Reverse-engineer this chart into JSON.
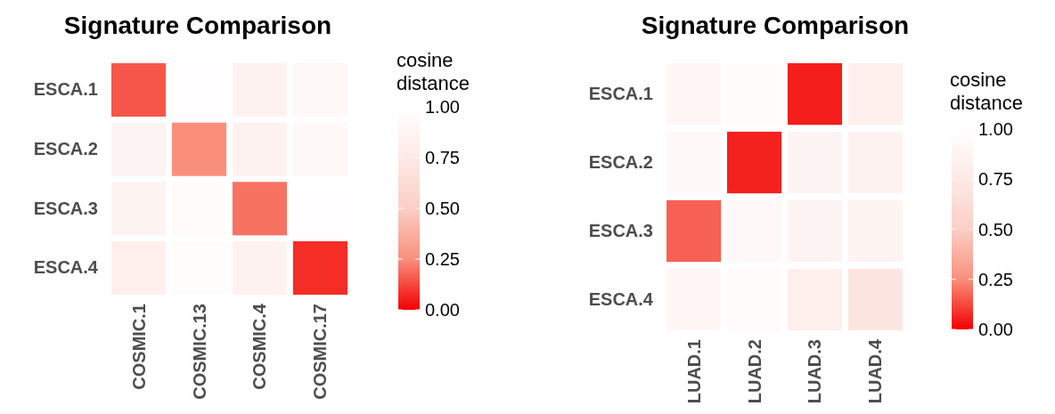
{
  "chart_data": [
    {
      "type": "heatmap",
      "title": "Signature Comparison",
      "clabel": "cosine distance",
      "categories": [
        "COSMIC.1",
        "COSMIC.13",
        "COSMIC.4",
        "COSMIC.17"
      ],
      "y_categories": [
        "ESCA.1",
        "ESCA.2",
        "ESCA.3",
        "ESCA.4"
      ],
      "cells": [
        [
          0.15,
          0.98,
          0.85,
          0.92
        ],
        [
          0.88,
          0.25,
          0.85,
          0.92
        ],
        [
          0.87,
          0.95,
          0.2,
          0.98
        ],
        [
          0.82,
          0.97,
          0.85,
          0.08
        ]
      ],
      "clim": [
        0,
        1
      ],
      "cticks": [
        {
          "value": 0,
          "label": "0.00"
        },
        {
          "value": 0.25,
          "label": "0.25"
        },
        {
          "value": 0.5,
          "label": "0.50"
        },
        {
          "value": 0.75,
          "label": "0.75"
        },
        {
          "value": 1,
          "label": "1.00"
        }
      ]
    },
    {
      "type": "heatmap",
      "title": "Signature Comparison",
      "clabel": "cosine distance",
      "categories": [
        "LUAD.1",
        "LUAD.2",
        "LUAD.3",
        "LUAD.4"
      ],
      "y_categories": [
        "ESCA.1",
        "ESCA.2",
        "ESCA.3",
        "ESCA.4"
      ],
      "cells": [
        [
          0.9,
          0.95,
          0.05,
          0.82
        ],
        [
          0.93,
          0.06,
          0.88,
          0.85
        ],
        [
          0.17,
          0.93,
          0.88,
          0.87
        ],
        [
          0.9,
          0.95,
          0.82,
          0.72
        ]
      ],
      "clim": [
        0,
        1
      ],
      "cticks": [
        {
          "value": 0,
          "label": "0.00"
        },
        {
          "value": 0.25,
          "label": "0.25"
        },
        {
          "value": 0.5,
          "label": "0.50"
        },
        {
          "value": 0.75,
          "label": "0.75"
        },
        {
          "value": 1,
          "label": "1.00"
        }
      ]
    }
  ]
}
